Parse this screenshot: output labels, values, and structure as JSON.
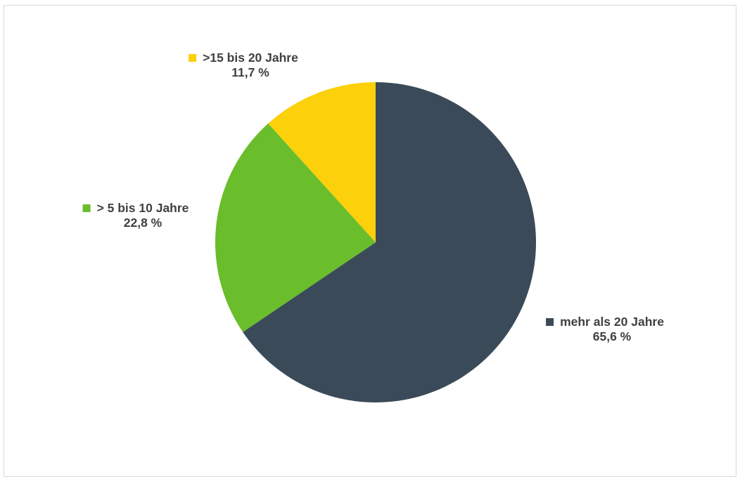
{
  "chart_data": {
    "type": "pie",
    "slices": [
      {
        "label": "mehr als 20 Jahre",
        "value": 65.6,
        "value_label": "65,6 %",
        "color": "#3A4A58"
      },
      {
        "label": "> 5 bis 10 Jahre",
        "value": 22.8,
        "value_label": "22,8 %",
        "color": "#6ABD2B"
      },
      {
        "label": ">15 bis 20 Jahre",
        "value": 11.7,
        "value_label": "11,7 %",
        "color": "#FCD00A"
      }
    ],
    "start": "12 o'clock",
    "direction": "clockwise",
    "legend": "none",
    "data_labels": "outside"
  }
}
